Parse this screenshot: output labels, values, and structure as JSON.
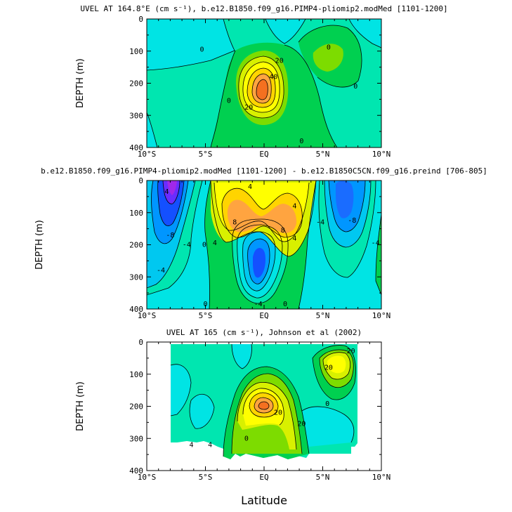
{
  "chart_data": [
    {
      "type": "contour",
      "title": "UVEL AT 164.8°E (cm s⁻¹), b.e12.B1850.f09_g16.PIMP4-pliomip2.modMed [1101-1200]",
      "xlabel": "",
      "ylabel": "DEPTH (m)",
      "xlim": [
        -10,
        10
      ],
      "ylim": [
        400,
        0
      ],
      "xticks": [
        "10°S",
        "5°S",
        "EQ",
        "5°N",
        "10°N"
      ],
      "yticks": [
        "0",
        "100",
        "200",
        "300",
        "400"
      ],
      "contour_labels": [
        {
          "text": "0",
          "lat": -5.3,
          "depth": 95
        },
        {
          "text": "0",
          "lat": -3.0,
          "depth": 255
        },
        {
          "text": "20",
          "lat": 1.3,
          "depth": 130
        },
        {
          "text": "40",
          "lat": 0.8,
          "depth": 180
        },
        {
          "text": "20",
          "lat": -1.3,
          "depth": 275
        },
        {
          "text": "0",
          "lat": 5.5,
          "depth": 88
        },
        {
          "text": "0",
          "lat": 7.8,
          "depth": 210
        },
        {
          "text": "0",
          "lat": 3.2,
          "depth": 380
        }
      ],
      "features": [
        {
          "name": "equatorial undercurrent core",
          "lat": -0.2,
          "depth": 185,
          "value": 45
        }
      ]
    },
    {
      "type": "contour",
      "title": "b.e12.B1850.f09_g16.PIMP4-pliomip2.modMed [1101-1200] - b.e12.B1850C5CN.f09_g16.preind [706-805]",
      "xlabel": "",
      "ylabel": "DEPTH (m)",
      "xlim": [
        -10,
        10
      ],
      "ylim": [
        400,
        0
      ],
      "xticks": [
        "10°S",
        "5°S",
        "EQ",
        "5°N",
        "10°N"
      ],
      "yticks": [
        "0",
        "100",
        "200",
        "300",
        "400"
      ],
      "contour_labels": [
        {
          "text": "4",
          "lat": -8.3,
          "depth": 35
        },
        {
          "text": "-8",
          "lat": -8.0,
          "depth": 170
        },
        {
          "text": "-4",
          "lat": -8.8,
          "depth": 280
        },
        {
          "text": "-4",
          "lat": -6.6,
          "depth": 200
        },
        {
          "text": "0",
          "lat": -5.1,
          "depth": 200
        },
        {
          "text": "4",
          "lat": -4.2,
          "depth": 195
        },
        {
          "text": "0",
          "lat": -5.0,
          "depth": 385
        },
        {
          "text": "4",
          "lat": -1.2,
          "depth": 20
        },
        {
          "text": "8",
          "lat": -2.5,
          "depth": 130
        },
        {
          "text": "8",
          "lat": 1.6,
          "depth": 155
        },
        {
          "text": "4",
          "lat": 2.6,
          "depth": 80
        },
        {
          "text": "4",
          "lat": 2.6,
          "depth": 180
        },
        {
          "text": "-4",
          "lat": -0.5,
          "depth": 385
        },
        {
          "text": "0",
          "lat": 1.8,
          "depth": 385
        },
        {
          "text": "-4",
          "lat": 4.8,
          "depth": 130
        },
        {
          "text": "-8",
          "lat": 7.5,
          "depth": 125
        },
        {
          "text": "-4",
          "lat": 9.5,
          "depth": 195
        }
      ],
      "features": [
        {
          "name": "westward anomaly core",
          "lat": -8.9,
          "depth": 30,
          "value": -16
        },
        {
          "name": "eastward anomaly core",
          "lat": 1.0,
          "depth": 115,
          "value": 10
        },
        {
          "name": "westward anomaly core",
          "lat": -0.3,
          "depth": 305,
          "value": -12
        },
        {
          "name": "westward anomaly core",
          "lat": 7.0,
          "depth": 75,
          "value": -11
        }
      ]
    },
    {
      "type": "contour",
      "title": "UVEL AT 165 (cm s⁻¹), Johnson et al (2002)",
      "xlabel": "Latitude",
      "ylabel": "DEPTH (m)",
      "xlim": [
        -10,
        10
      ],
      "ylim": [
        400,
        0
      ],
      "xticks": [
        "10°S",
        "5°S",
        "EQ",
        "5°N",
        "10°N"
      ],
      "yticks": [
        "0",
        "100",
        "200",
        "300",
        "400"
      ],
      "contour_labels": [
        {
          "text": "20",
          "lat": 5.5,
          "depth": 80
        },
        {
          "text": "20",
          "lat": 7.4,
          "depth": 28
        },
        {
          "text": "0",
          "lat": 5.4,
          "depth": 192
        },
        {
          "text": "20",
          "lat": 1.2,
          "depth": 220
        },
        {
          "text": "20",
          "lat": 3.2,
          "depth": 255
        },
        {
          "text": "4",
          "lat": -6.2,
          "depth": 320
        },
        {
          "text": "4",
          "lat": -4.6,
          "depth": 320
        },
        {
          "text": "0",
          "lat": -1.5,
          "depth": 300
        }
      ],
      "features": [
        {
          "name": "equatorial undercurrent core",
          "lat": -0.1,
          "depth": 185,
          "value": 45
        }
      ]
    }
  ]
}
